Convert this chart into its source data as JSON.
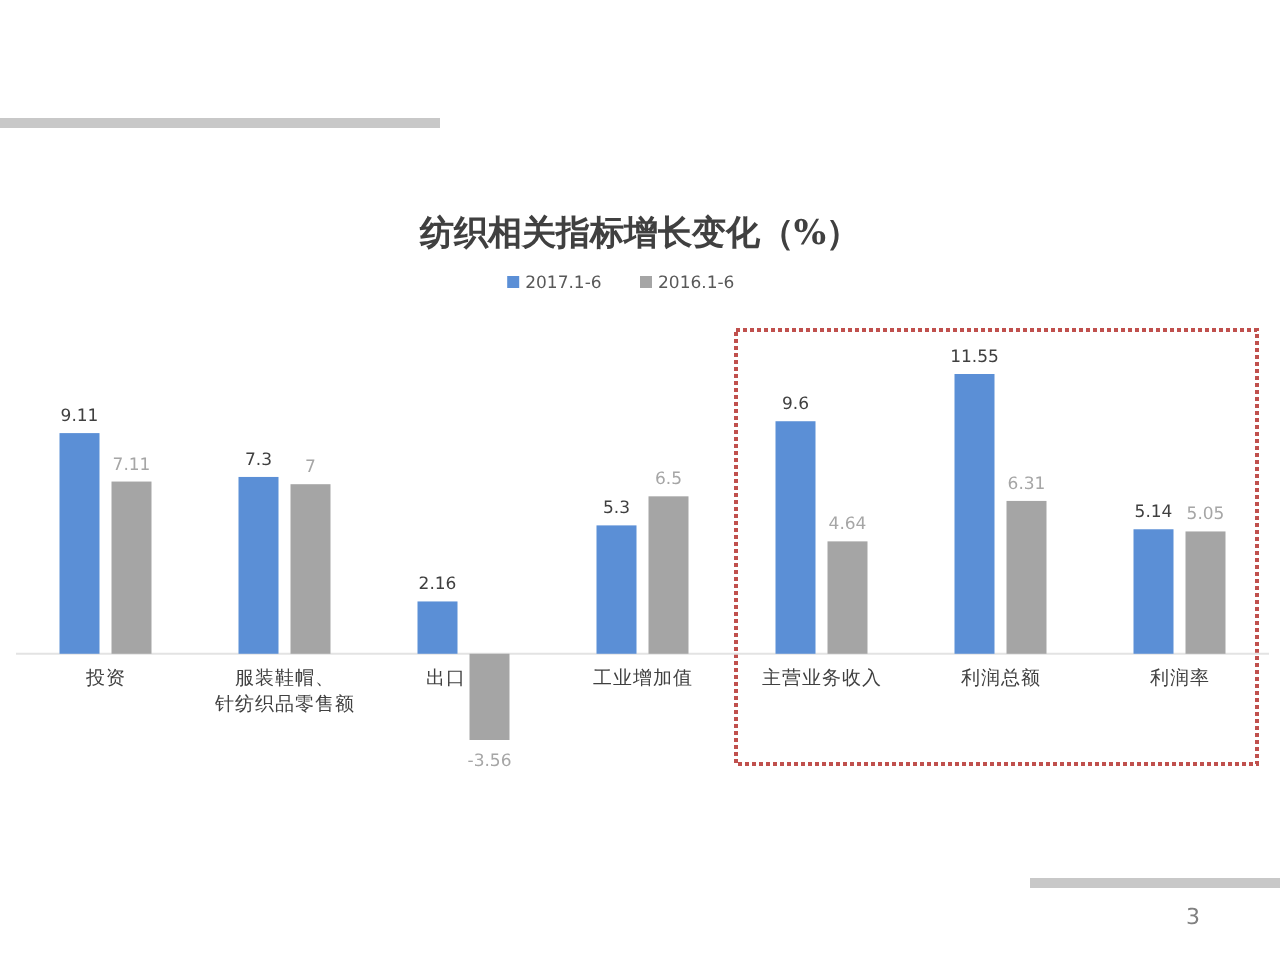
{
  "chart_data": {
    "type": "bar",
    "title": "纺织相关指标增长变化（%）",
    "categories": [
      "投资",
      "服装鞋帽、针纺织品零售额",
      "出口",
      "工业增加值",
      "主营业务收入",
      "利润总额",
      "利润率"
    ],
    "series": [
      {
        "name": "2017.1-6",
        "color": "#5b8fd6",
        "values": [
          9.11,
          7.3,
          2.16,
          5.3,
          9.6,
          11.55,
          5.14
        ]
      },
      {
        "name": "2016.1-6",
        "color": "#a5a5a5",
        "values": [
          7.11,
          7,
          -3.56,
          6.5,
          4.64,
          6.31,
          5.05
        ]
      }
    ],
    "data_labels": true,
    "legend": "top",
    "annotations": [
      "3"
    ]
  }
}
